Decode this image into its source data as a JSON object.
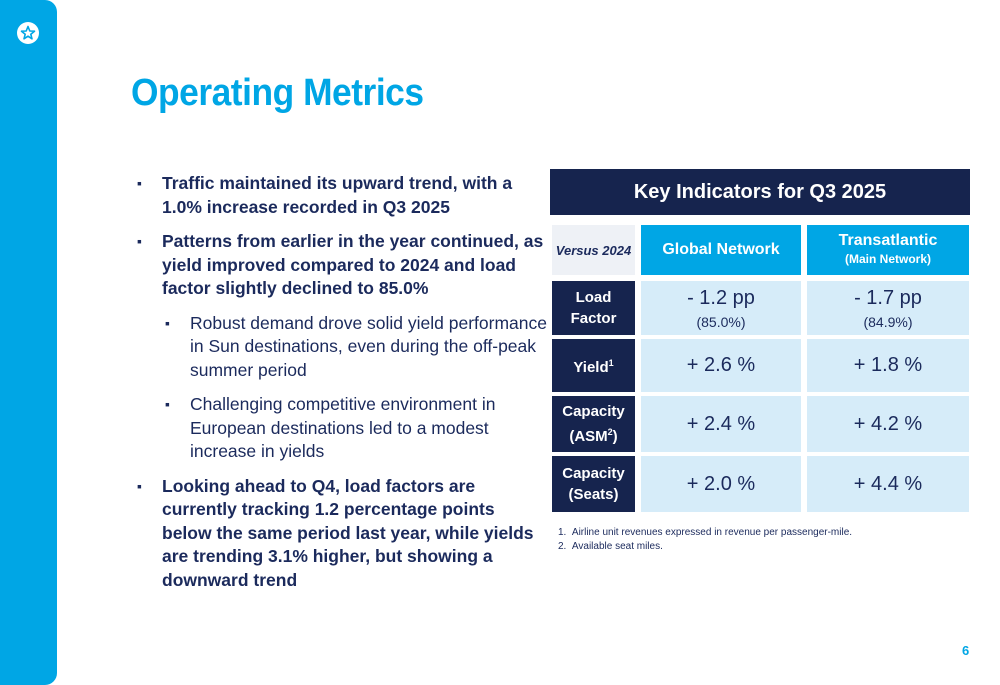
{
  "colors": {
    "brand": "#00a6e5",
    "navy": "#16244e",
    "light_blue": "#d6ecf9"
  },
  "logo": {
    "icon": "star-icon"
  },
  "title": "Operating Metrics",
  "bullets": [
    {
      "level": 1,
      "text": "Traffic maintained its upward trend, with a 1.0% increase recorded in Q3 2025"
    },
    {
      "level": 1,
      "text": "Patterns from earlier in the year continued, as yield improved compared to 2024 and load factor slightly declined to 85.0%"
    },
    {
      "level": 2,
      "text": "Robust demand drove solid yield performance in Sun destinations, even during the off-peak summer period"
    },
    {
      "level": 2,
      "text": "Challenging competitive environment in European destinations led to a modest increase in yields"
    },
    {
      "level": 1,
      "text": "Looking ahead to Q4, load factors are currently tracking 1.2 percentage points below the same period last year, while yields are trending 3.1% higher, but showing a downward trend"
    }
  ],
  "table": {
    "header": "Key Indicators for Q3 2025",
    "versus": "Versus 2024",
    "col1": "Global Network",
    "col2_line1": "Transatlantic",
    "col2_line2": "(Main Network)",
    "rows": [
      {
        "label1": "Load",
        "label2": "Factor",
        "global": "- 1.2 pp",
        "global_sub": "(85.0%)",
        "ta": "- 1.7 pp",
        "ta_sub": "(84.9%)"
      },
      {
        "label1": "Yield",
        "sup": "1",
        "global": "+ 2.6 %",
        "ta": "+ 1.8 %"
      },
      {
        "label1": "Capacity",
        "label2": "(ASM",
        "sup": "2",
        "label2_end": ")",
        "global": "+ 2.4 %",
        "ta": "+ 4.2 %"
      },
      {
        "label1": "Capacity",
        "label2": "(Seats)",
        "global": "+ 2.0 %",
        "ta": "+ 4.4 %"
      }
    ]
  },
  "footnotes": [
    "1.  Airline unit revenues expressed in revenue per passenger-mile.",
    "2.  Available seat miles."
  ],
  "page_number": "6"
}
